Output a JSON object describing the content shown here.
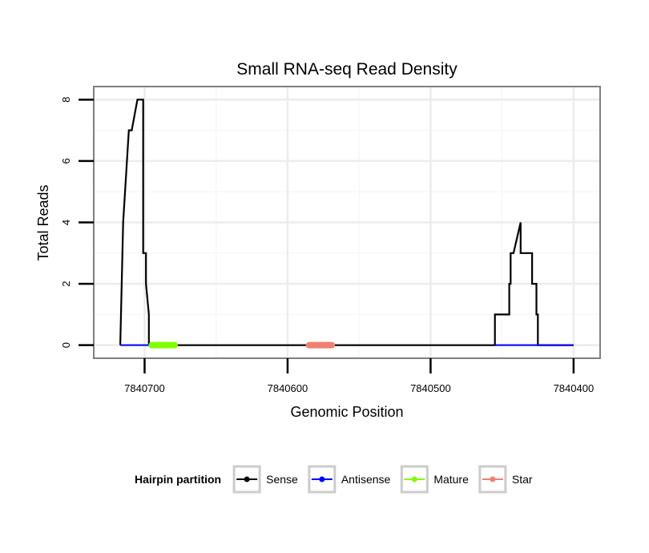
{
  "chart_data": {
    "type": "line",
    "title": "Small RNA-seq Read Density",
    "xlabel": "Genomic Position",
    "ylabel": "Total Reads",
    "xlim": [
      7840735,
      7840382
    ],
    "ylim": [
      -0.4,
      8.4
    ],
    "x_reversed": true,
    "grid": true,
    "x_ticks": [
      {
        "value": 7840700,
        "label": "7840700"
      },
      {
        "value": 7840600,
        "label": "7840600"
      },
      {
        "value": 7840500,
        "label": "7840500"
      },
      {
        "value": 7840400,
        "label": "7840400"
      }
    ],
    "x_minor_gridlines": [
      7840650,
      7840550,
      7840450
    ],
    "y_ticks": [
      {
        "value": 0,
        "label": "0"
      },
      {
        "value": 2,
        "label": "2"
      },
      {
        "value": 4,
        "label": "4"
      },
      {
        "value": 6,
        "label": "6"
      },
      {
        "value": 8,
        "label": "8"
      }
    ],
    "y_minor_gridlines": [
      1,
      3,
      5,
      7
    ],
    "series": [
      {
        "name": "Sense",
        "color": "#000000",
        "x": [
          7840717,
          7840715,
          7840715,
          7840711,
          7840709,
          7840709,
          7840705,
          7840703,
          7840703,
          7840702,
          7840702,
          7840701,
          7840701,
          7840699,
          7840699,
          7840697,
          7840697,
          7840455,
          7840455,
          7840445,
          7840445,
          7840444,
          7840444,
          7840442,
          7840442,
          7840437,
          7840437,
          7840434,
          7840434,
          7840430,
          7840429,
          7840429,
          7840426,
          7840426,
          7840425,
          7840425,
          7840420,
          7840420,
          7840419,
          7840419,
          7840417,
          7840417,
          7840415,
          7840415,
          7840400
        ],
        "y": [
          0,
          4,
          4,
          7,
          7,
          7,
          8,
          8,
          8,
          8,
          8,
          8,
          3,
          3,
          2,
          1,
          0,
          0,
          1,
          1,
          2,
          2,
          3,
          3,
          3,
          4,
          3,
          3,
          3,
          3,
          3,
          2,
          2,
          1,
          1,
          0,
          0,
          0,
          0,
          0,
          0,
          0,
          0,
          0,
          0
        ]
      },
      {
        "name": "Antisense",
        "color": "#0000ff",
        "segments": [
          [
            7840717,
            7840697
          ],
          [
            7840455,
            7840400
          ]
        ]
      },
      {
        "name": "Mature",
        "color": "#7fff00",
        "segments": [
          [
            7840695,
            7840679
          ]
        ]
      },
      {
        "name": "Star",
        "color": "#f08070",
        "segments": [
          [
            7840585,
            7840569
          ]
        ]
      }
    ],
    "legend": {
      "title": "Hairpin partition",
      "placement": "bottom",
      "entries": [
        {
          "label": "Sense",
          "color": "#000000"
        },
        {
          "label": "Antisense",
          "color": "#0000ff"
        },
        {
          "label": "Mature",
          "color": "#7fff00"
        },
        {
          "label": "Star",
          "color": "#f08070"
        }
      ]
    }
  }
}
